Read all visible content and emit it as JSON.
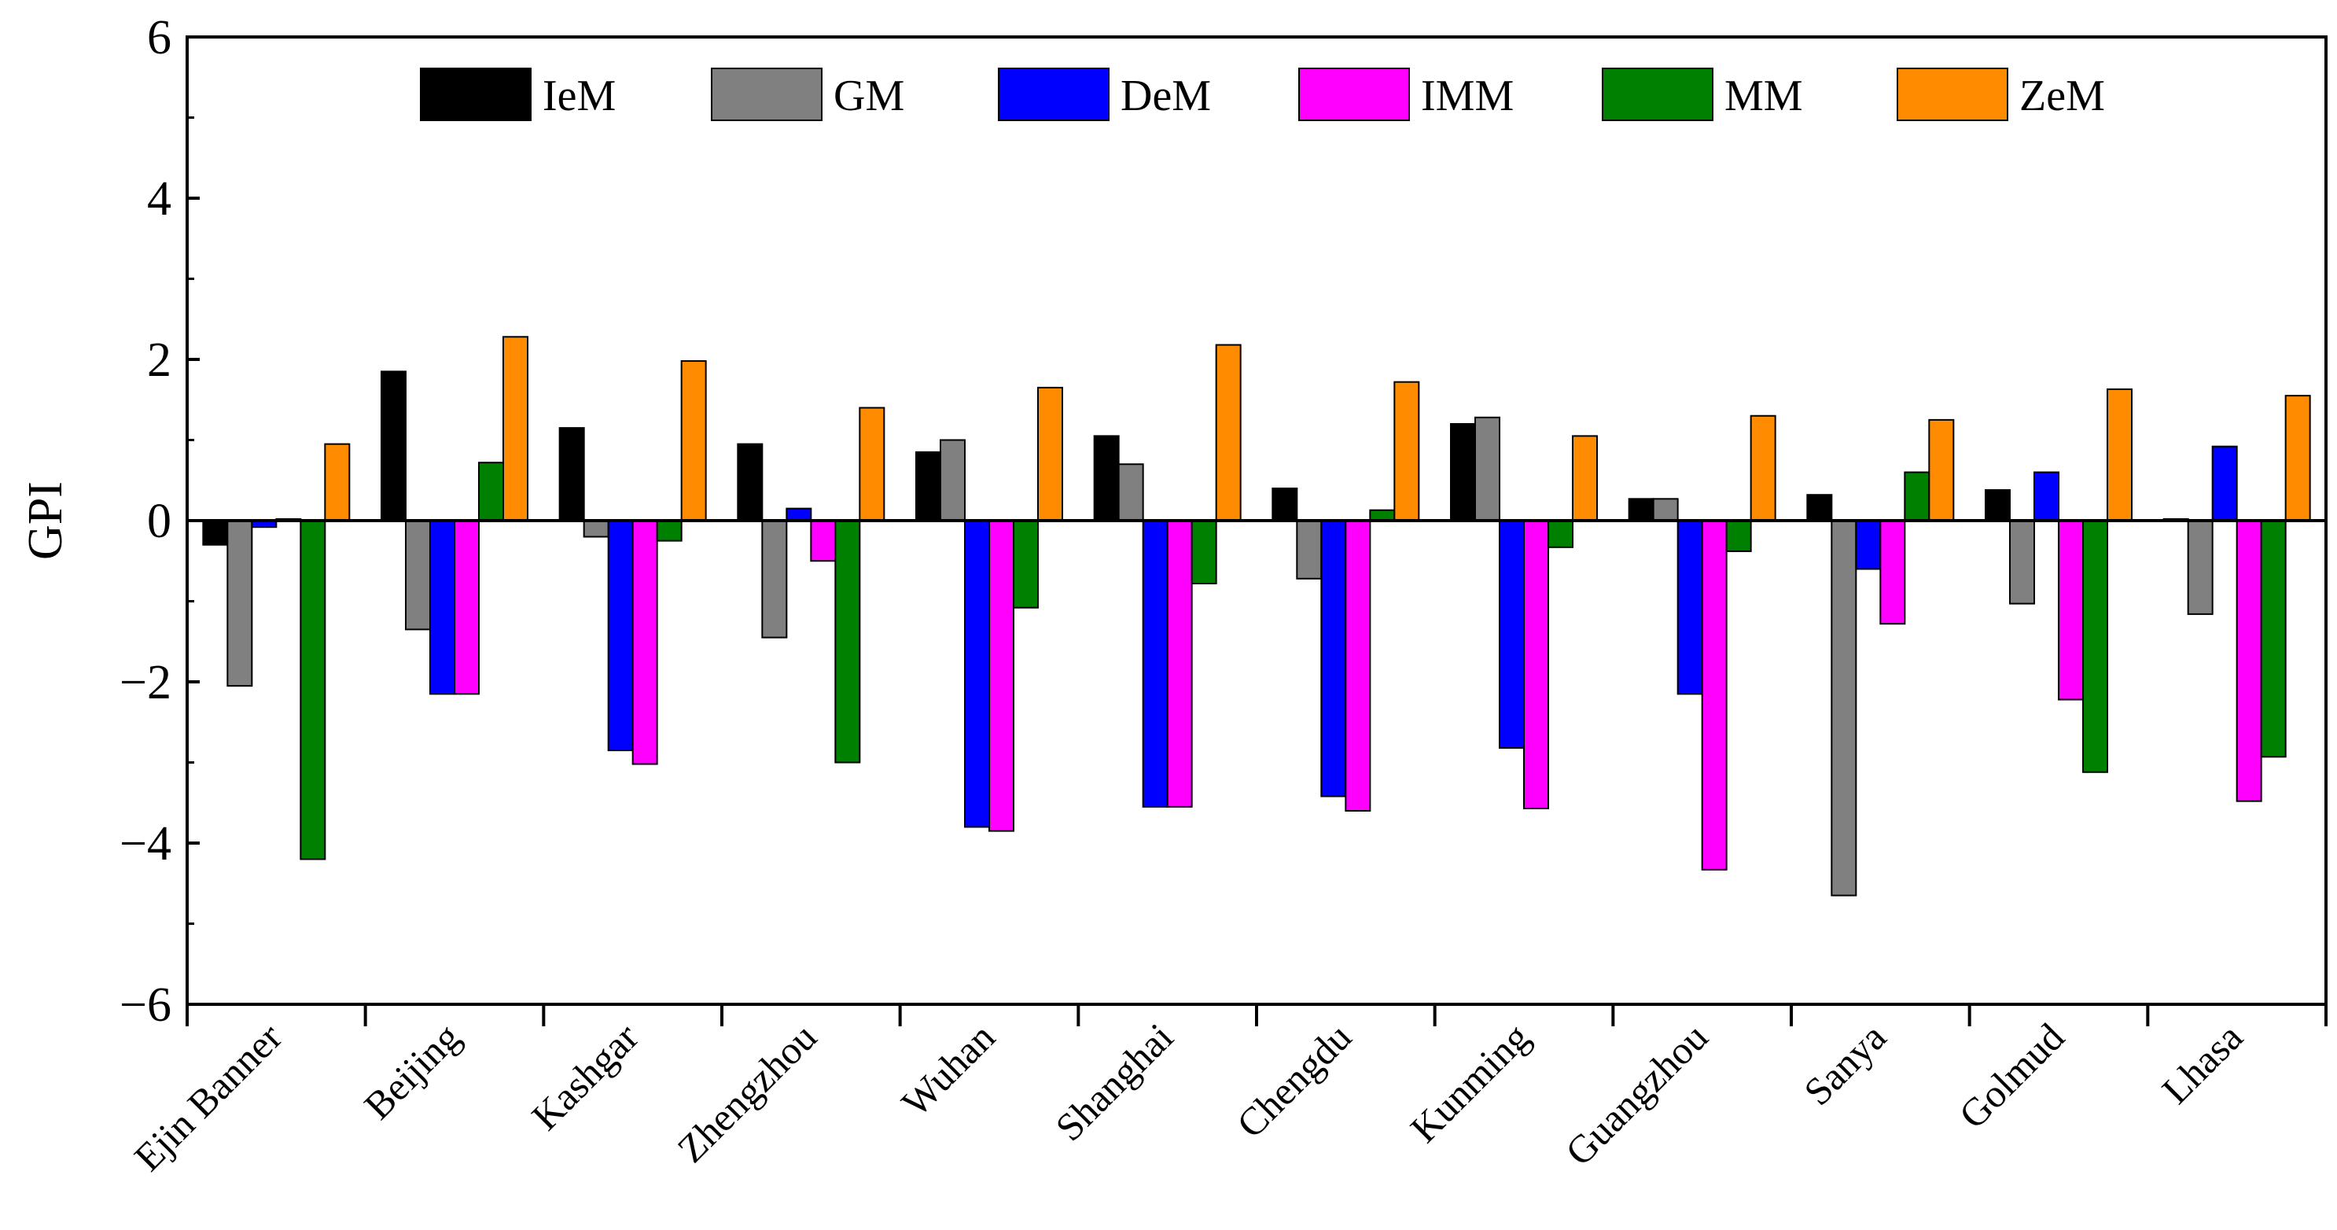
{
  "chart_data": {
    "type": "bar",
    "title": "",
    "xlabel": "",
    "ylabel": "GPI",
    "ylim": [
      -6,
      6
    ],
    "yticks": [
      "6",
      "4",
      "2",
      "0",
      "-2",
      "-4",
      "-6"
    ],
    "grid": false,
    "legend_position": "top",
    "categories": [
      "Ejin Banner",
      "Beijing",
      "Kashgar",
      "Zhengzhou",
      "Wuhan",
      "Shanghai",
      "Chengdu",
      "Kunming",
      "Guangzhou",
      "Sanya",
      "Golmud",
      "Lhasa"
    ],
    "series": [
      {
        "name": "IeM",
        "color": "#000000",
        "values": [
          -0.3,
          1.85,
          1.15,
          0.95,
          0.85,
          1.05,
          0.4,
          1.2,
          0.27,
          0.32,
          0.38,
          0.02
        ]
      },
      {
        "name": "GM",
        "color": "#808080",
        "values": [
          -2.05,
          -1.35,
          -0.2,
          -1.45,
          1.0,
          0.7,
          -0.72,
          1.28,
          0.27,
          -4.65,
          -1.03,
          -1.16
        ]
      },
      {
        "name": "DeM",
        "color": "#0000ff",
        "values": [
          -0.08,
          -2.15,
          -2.85,
          0.15,
          -3.8,
          -3.55,
          -3.42,
          -2.82,
          -2.15,
          -0.6,
          0.6,
          0.92
        ]
      },
      {
        "name": "IMM",
        "color": "#ff00ff",
        "values": [
          0.02,
          -2.15,
          -3.02,
          -0.5,
          -3.85,
          -3.55,
          -3.6,
          -3.57,
          -4.33,
          -1.28,
          -2.22,
          -3.48
        ]
      },
      {
        "name": "MM",
        "color": "#008000",
        "values": [
          -4.2,
          0.72,
          -0.25,
          -3.0,
          -1.08,
          -0.78,
          0.13,
          -0.33,
          -0.38,
          0.6,
          -3.12,
          -2.93
        ]
      },
      {
        "name": "ZeM",
        "color": "#ff8c00",
        "values": [
          0.95,
          2.28,
          1.98,
          1.4,
          1.65,
          2.18,
          1.72,
          1.05,
          1.3,
          1.25,
          1.63,
          1.55
        ]
      }
    ]
  }
}
